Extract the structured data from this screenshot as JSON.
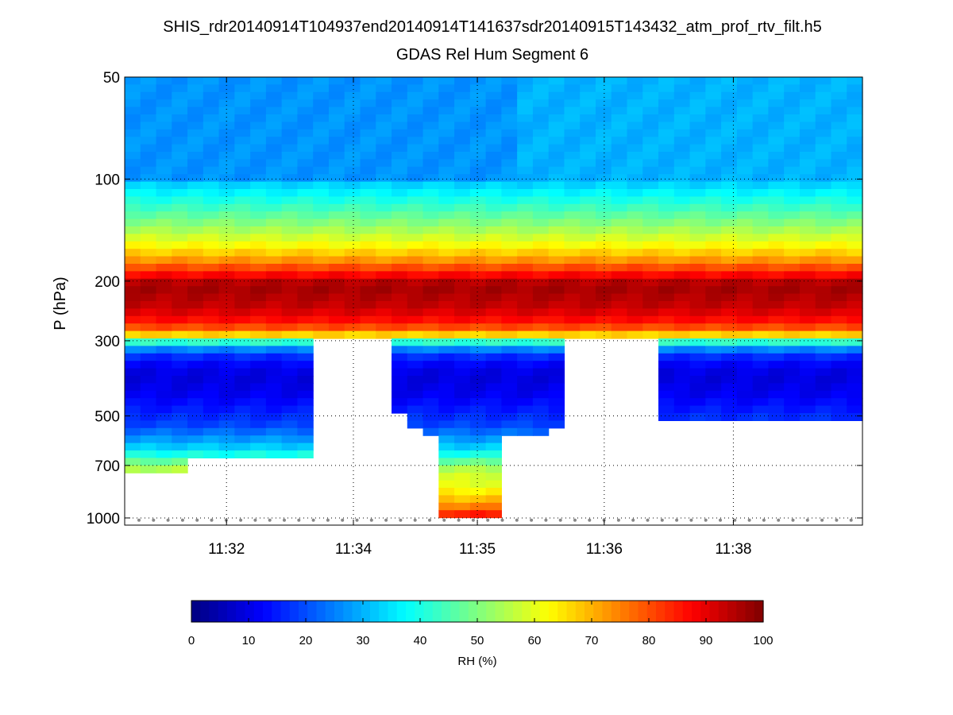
{
  "chart_data": {
    "type": "heatmap",
    "title": "SHIS_rdr20140914T104937end20140914T141637sdr20140915T143432_atm_prof_rtv_filt.h5",
    "subtitle": "GDAS Rel Hum Segment 6",
    "ylabel": "P (hPa)",
    "y_scale": "log",
    "y_reversed": true,
    "ylim": [
      50,
      1050
    ],
    "y_ticks": [
      "50",
      "100",
      "200",
      "300",
      "500",
      "700",
      "1000"
    ],
    "x_ticks": [
      "11:32",
      "11:34",
      "11:35",
      "11:36",
      "11:38"
    ],
    "grid": true,
    "colormap": "jet",
    "colorbar": {
      "label": "RH (%)",
      "range": [
        0,
        100
      ],
      "ticks": [
        "0",
        "10",
        "20",
        "30",
        "40",
        "50",
        "60",
        "70",
        "80",
        "90",
        "100"
      ],
      "placement": "bottom"
    },
    "rh_profile": [
      {
        "p": 50,
        "rh": 27
      },
      {
        "p": 95,
        "rh": 27
      },
      {
        "p": 105,
        "rh": 34
      },
      {
        "p": 115,
        "rh": 40
      },
      {
        "p": 130,
        "rh": 48
      },
      {
        "p": 145,
        "rh": 56
      },
      {
        "p": 160,
        "rh": 64
      },
      {
        "p": 175,
        "rh": 74
      },
      {
        "p": 190,
        "rh": 86
      },
      {
        "p": 205,
        "rh": 97
      },
      {
        "p": 240,
        "rh": 93
      },
      {
        "p": 270,
        "rh": 84
      },
      {
        "p": 290,
        "rh": 65
      },
      {
        "p": 310,
        "rh": 30
      },
      {
        "p": 340,
        "rh": 14
      },
      {
        "p": 380,
        "rh": 9
      },
      {
        "p": 430,
        "rh": 11
      },
      {
        "p": 480,
        "rh": 15
      },
      {
        "p": 530,
        "rh": 19
      },
      {
        "p": 570,
        "rh": 25
      },
      {
        "p": 620,
        "rh": 33
      },
      {
        "p": 660,
        "rh": 42
      },
      {
        "p": 700,
        "rh": 52
      },
      {
        "p": 740,
        "rh": 58
      },
      {
        "p": 800,
        "rh": 60
      },
      {
        "p": 860,
        "rh": 66
      },
      {
        "p": 920,
        "rh": 74
      },
      {
        "p": 970,
        "rh": 84
      },
      {
        "p": 1010,
        "rh": 88
      }
    ],
    "segments": [
      {
        "f0": 0.0,
        "f1": 0.085,
        "p_valid_max": 730
      },
      {
        "f0": 0.085,
        "f1": 0.255,
        "p_valid_max": 670
      },
      {
        "f0": 0.255,
        "f1": 0.36,
        "p_valid_max": 300
      },
      {
        "f0": 0.36,
        "f1": 0.38,
        "p_valid_max": 490
      },
      {
        "f0": 0.38,
        "f1": 0.405,
        "p_valid_max": 540
      },
      {
        "f0": 0.405,
        "f1": 0.427,
        "p_valid_max": 560
      },
      {
        "f0": 0.427,
        "f1": 0.512,
        "p_valid_max": 1010
      },
      {
        "f0": 0.512,
        "f1": 0.57,
        "p_valid_max": 570
      },
      {
        "f0": 0.57,
        "f1": 0.595,
        "p_valid_max": 540
      },
      {
        "f0": 0.595,
        "f1": 0.723,
        "p_valid_max": 300
      },
      {
        "f0": 0.723,
        "f1": 0.98,
        "p_valid_max": 505
      },
      {
        "f0": 0.98,
        "f1": 1.0,
        "p_valid_max": 525
      }
    ],
    "upper_variation": {
      "f_split": 0.53,
      "rh_left": 27,
      "rh_right": 30
    }
  }
}
